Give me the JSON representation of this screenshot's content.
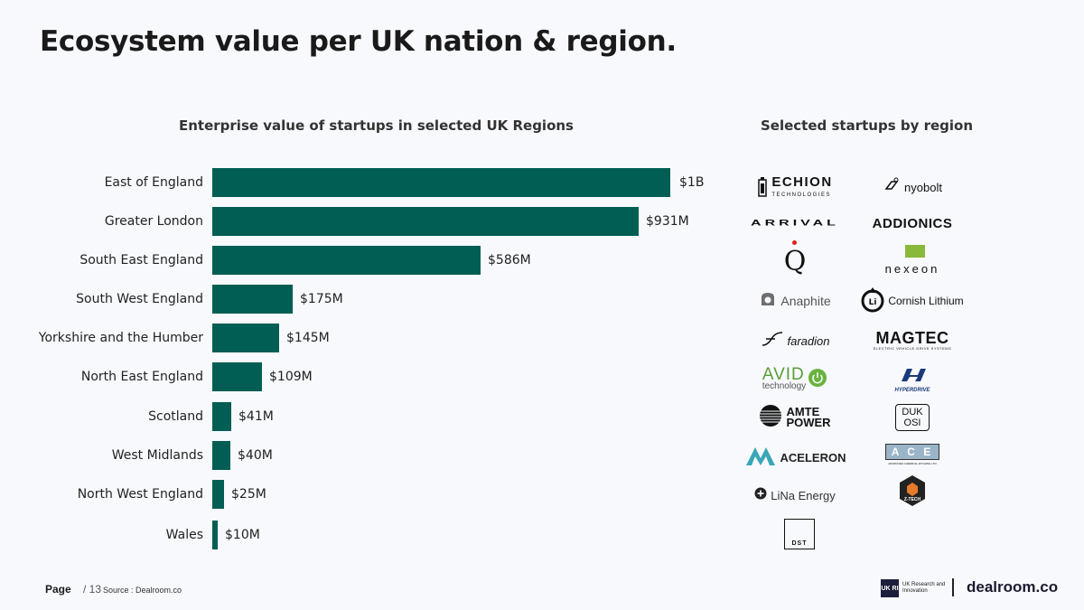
{
  "title": "Ecosystem value per UK nation & region.",
  "chart_subtitle": "Enterprise value of startups in selected UK Regions",
  "logos_subtitle": "Selected startups by region",
  "chart_data": {
    "type": "bar",
    "orientation": "horizontal",
    "title": "Enterprise value of startups in selected UK Regions",
    "categories": [
      "East of England",
      "Greater London",
      "South East England",
      "South West England",
      "Yorkshire and the Humber",
      "North East England",
      "Scotland",
      "West Midlands",
      "North West England",
      "Wales"
    ],
    "values": [
      1000,
      931,
      586,
      175,
      145,
      109,
      41,
      40,
      25,
      10
    ],
    "value_labels": [
      "$1B",
      "$931M",
      "$586M",
      "$175M",
      "$145M",
      "$109M",
      "$41M",
      "$40M",
      "$25M",
      "$10M"
    ],
    "unit": "$M",
    "xlim": [
      0,
      1000
    ],
    "color": "#005e54",
    "grid": false,
    "legend": "none"
  },
  "logos": [
    {
      "name": "ECHION",
      "sub": "TECHNOLOGIES",
      "icon": "battery-icon"
    },
    {
      "name": "nyobolt",
      "icon": "nyobolt-icon"
    },
    {
      "name": "ARRIVAL"
    },
    {
      "name": "ADDIONICS"
    },
    {
      "name": "Q",
      "icon": "q-icon"
    },
    {
      "name": "nexeon",
      "icon": "nexeon-icon"
    },
    {
      "name": "Anaphite",
      "icon": "anaphite-icon"
    },
    {
      "name": "Cornish Lithium",
      "icon": "cornish-lithium-icon"
    },
    {
      "name": "faradion",
      "icon": "faradion-icon"
    },
    {
      "name": "MAGTEC",
      "sub": "ELECTRIC VEHICLE DRIVE SYSTEMS"
    },
    {
      "name": "AVID",
      "sub": "technology",
      "icon": "power-icon"
    },
    {
      "name": "HYPERDRIVE",
      "icon": "hyperdrive-icon"
    },
    {
      "name": "AMTE",
      "sub": "POWER",
      "icon": "globe-icon"
    },
    {
      "name": "DUK",
      "sub": "OSI"
    },
    {
      "name": "ACELERON",
      "icon": "aceleron-icon"
    },
    {
      "name": "A C E",
      "sub": "ADVANCED CHEMICAL ETCHING LTD"
    },
    {
      "name": "LiNa Energy",
      "icon": "plus-circle-icon"
    },
    {
      "name": "Z-TECH",
      "icon": "hexagon-icon"
    },
    {
      "name": "DST"
    }
  ],
  "footer": {
    "page_label": "Page",
    "page_num": "/ 13",
    "source": "Source : Dealroom.co",
    "ukri_box": "UK RI",
    "ukri_text": "UK Research and Innovation",
    "brand": "dealroom.co"
  },
  "colors": {
    "bar": "#005e54",
    "background": "#f7f9fc"
  }
}
